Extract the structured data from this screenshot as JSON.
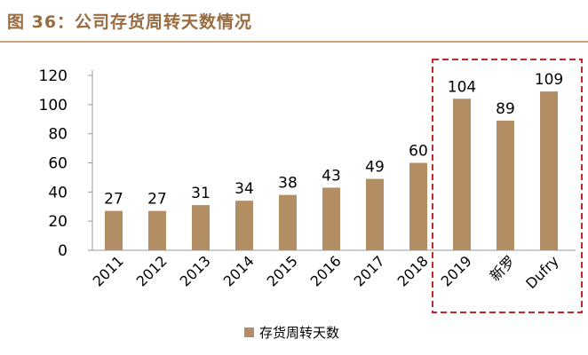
{
  "figure": {
    "title": "图 36：公司存货周转天数情况"
  },
  "chart_data": {
    "type": "bar",
    "categories": [
      "2011",
      "2012",
      "2013",
      "2014",
      "2015",
      "2016",
      "2017",
      "2018",
      "2019",
      "新罗",
      "Dufry"
    ],
    "series": [
      {
        "name": "存货周转天数",
        "values": [
          27,
          27,
          31,
          34,
          38,
          43,
          49,
          60,
          104,
          89,
          109
        ]
      }
    ],
    "ylim": [
      0,
      120
    ],
    "yticks": [
      0,
      20,
      40,
      60,
      80,
      100,
      120
    ],
    "data_labels": true,
    "legend_position": "bottom",
    "highlight_box": {
      "from_category": "2019",
      "to_category": "Dufry",
      "style": "dashed",
      "color": "#c0282c"
    },
    "bar_color": "#b38e64"
  }
}
